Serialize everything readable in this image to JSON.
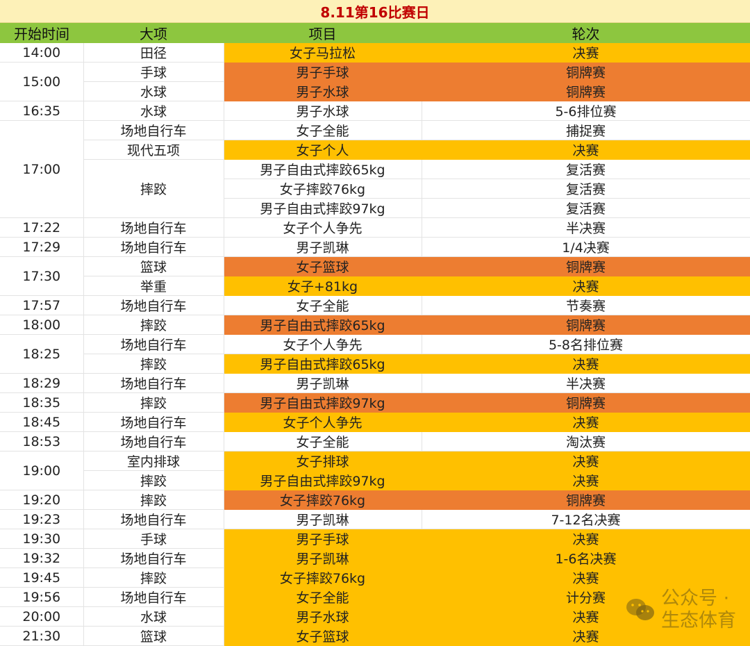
{
  "title": "8.11第16比赛日",
  "headers": [
    "开始时间",
    "大项",
    "项目",
    "轮次"
  ],
  "colors": {
    "title_bg": "#fdf1b8",
    "title_text": "#c00000",
    "header_bg": "#8dc63f",
    "final": "#ffc000",
    "bronze": "#ed7d31",
    "white": "#ffffff"
  },
  "rows": [
    {
      "time": "14:00",
      "time_span": 1,
      "sport": "田径",
      "sport_span": 1,
      "event": "女子马拉松",
      "round": "决赛",
      "color": "Y"
    },
    {
      "time": "15:00",
      "time_span": 2,
      "sport": "手球",
      "sport_span": 1,
      "event": "男子手球",
      "round": "铜牌赛",
      "color": "O"
    },
    {
      "sport": "水球",
      "sport_span": 1,
      "event": "男子水球",
      "round": "铜牌赛",
      "color": "O"
    },
    {
      "time": "16:35",
      "time_span": 1,
      "sport": "水球",
      "sport_span": 1,
      "event": "男子水球",
      "round": "5-6排位赛",
      "color": "W"
    },
    {
      "time": "17:00",
      "time_span": 5,
      "sport": "场地自行车",
      "sport_span": 1,
      "event": "女子全能",
      "round": "捕捉赛",
      "color": "W"
    },
    {
      "sport": "现代五项",
      "sport_span": 1,
      "event": "女子个人",
      "round": "决赛",
      "color": "Y"
    },
    {
      "sport": "摔跤",
      "sport_span": 3,
      "event": "男子自由式摔跤65kg",
      "round": "复活赛",
      "color": "W"
    },
    {
      "event": "女子摔跤76kg",
      "round": "复活赛",
      "color": "W"
    },
    {
      "event": "男子自由式摔跤97kg",
      "round": "复活赛",
      "color": "W"
    },
    {
      "time": "17:22",
      "time_span": 1,
      "sport": "场地自行车",
      "sport_span": 1,
      "event": "女子个人争先",
      "round": "半决赛",
      "color": "W"
    },
    {
      "time": "17:29",
      "time_span": 1,
      "sport": "场地自行车",
      "sport_span": 1,
      "event": "男子凯琳",
      "round": "1/4决赛",
      "color": "W"
    },
    {
      "time": "17:30",
      "time_span": 2,
      "sport": "篮球",
      "sport_span": 1,
      "event": "女子篮球",
      "round": "铜牌赛",
      "color": "O"
    },
    {
      "sport": "举重",
      "sport_span": 1,
      "event": "女子+81kg",
      "round": "决赛",
      "color": "Y"
    },
    {
      "time": "17:57",
      "time_span": 1,
      "sport": "场地自行车",
      "sport_span": 1,
      "event": "女子全能",
      "round": "节奏赛",
      "color": "W"
    },
    {
      "time": "18:00",
      "time_span": 1,
      "sport": "摔跤",
      "sport_span": 1,
      "event": "男子自由式摔跤65kg",
      "round": "铜牌赛",
      "color": "O"
    },
    {
      "time": "18:25",
      "time_span": 2,
      "sport": "场地自行车",
      "sport_span": 1,
      "event": "女子个人争先",
      "round": "5-8名排位赛",
      "color": "W"
    },
    {
      "sport": "摔跤",
      "sport_span": 1,
      "event": "男子自由式摔跤65kg",
      "round": "决赛",
      "color": "Y"
    },
    {
      "time": "18:29",
      "time_span": 1,
      "sport": "场地自行车",
      "sport_span": 1,
      "event": "男子凯琳",
      "round": "半决赛",
      "color": "W"
    },
    {
      "time": "18:35",
      "time_span": 1,
      "sport": "摔跤",
      "sport_span": 1,
      "event": "男子自由式摔跤97kg",
      "round": "铜牌赛",
      "color": "O"
    },
    {
      "time": "18:45",
      "time_span": 1,
      "sport": "场地自行车",
      "sport_span": 1,
      "event": "女子个人争先",
      "round": "决赛",
      "color": "Y"
    },
    {
      "time": "18:53",
      "time_span": 1,
      "sport": "场地自行车",
      "sport_span": 1,
      "event": "女子全能",
      "round": "淘汰赛",
      "color": "W"
    },
    {
      "time": "19:00",
      "time_span": 2,
      "sport": "室内排球",
      "sport_span": 1,
      "event": "女子排球",
      "round": "决赛",
      "color": "Y"
    },
    {
      "sport": "摔跤",
      "sport_span": 1,
      "event": "男子自由式摔跤97kg",
      "round": "决赛",
      "color": "Y"
    },
    {
      "time": "19:20",
      "time_span": 1,
      "sport": "摔跤",
      "sport_span": 1,
      "event": "女子摔跤76kg",
      "round": "铜牌赛",
      "color": "O"
    },
    {
      "time": "19:23",
      "time_span": 1,
      "sport": "场地自行车",
      "sport_span": 1,
      "event": "男子凯琳",
      "round": "7-12名决赛",
      "color": "W"
    },
    {
      "time": "19:30",
      "time_span": 1,
      "sport": "手球",
      "sport_span": 1,
      "event": "男子手球",
      "round": "决赛",
      "color": "Y"
    },
    {
      "time": "19:32",
      "time_span": 1,
      "sport": "场地自行车",
      "sport_span": 1,
      "event": "男子凯琳",
      "round": "1-6名决赛",
      "color": "Y"
    },
    {
      "time": "19:45",
      "time_span": 1,
      "sport": "摔跤",
      "sport_span": 1,
      "event": "女子摔跤76kg",
      "round": "决赛",
      "color": "Y"
    },
    {
      "time": "19:56",
      "time_span": 1,
      "sport": "场地自行车",
      "sport_span": 1,
      "event": "女子全能",
      "round": "计分赛",
      "color": "Y"
    },
    {
      "time": "20:00",
      "time_span": 1,
      "sport": "水球",
      "sport_span": 1,
      "event": "男子水球",
      "round": "决赛",
      "color": "Y"
    },
    {
      "time": "21:30",
      "time_span": 1,
      "sport": "篮球",
      "sport_span": 1,
      "event": "女子篮球",
      "round": "决赛",
      "color": "Y"
    }
  ],
  "watermark": {
    "icon": "wechat-icon",
    "text": "公众号 · 生态体育"
  }
}
